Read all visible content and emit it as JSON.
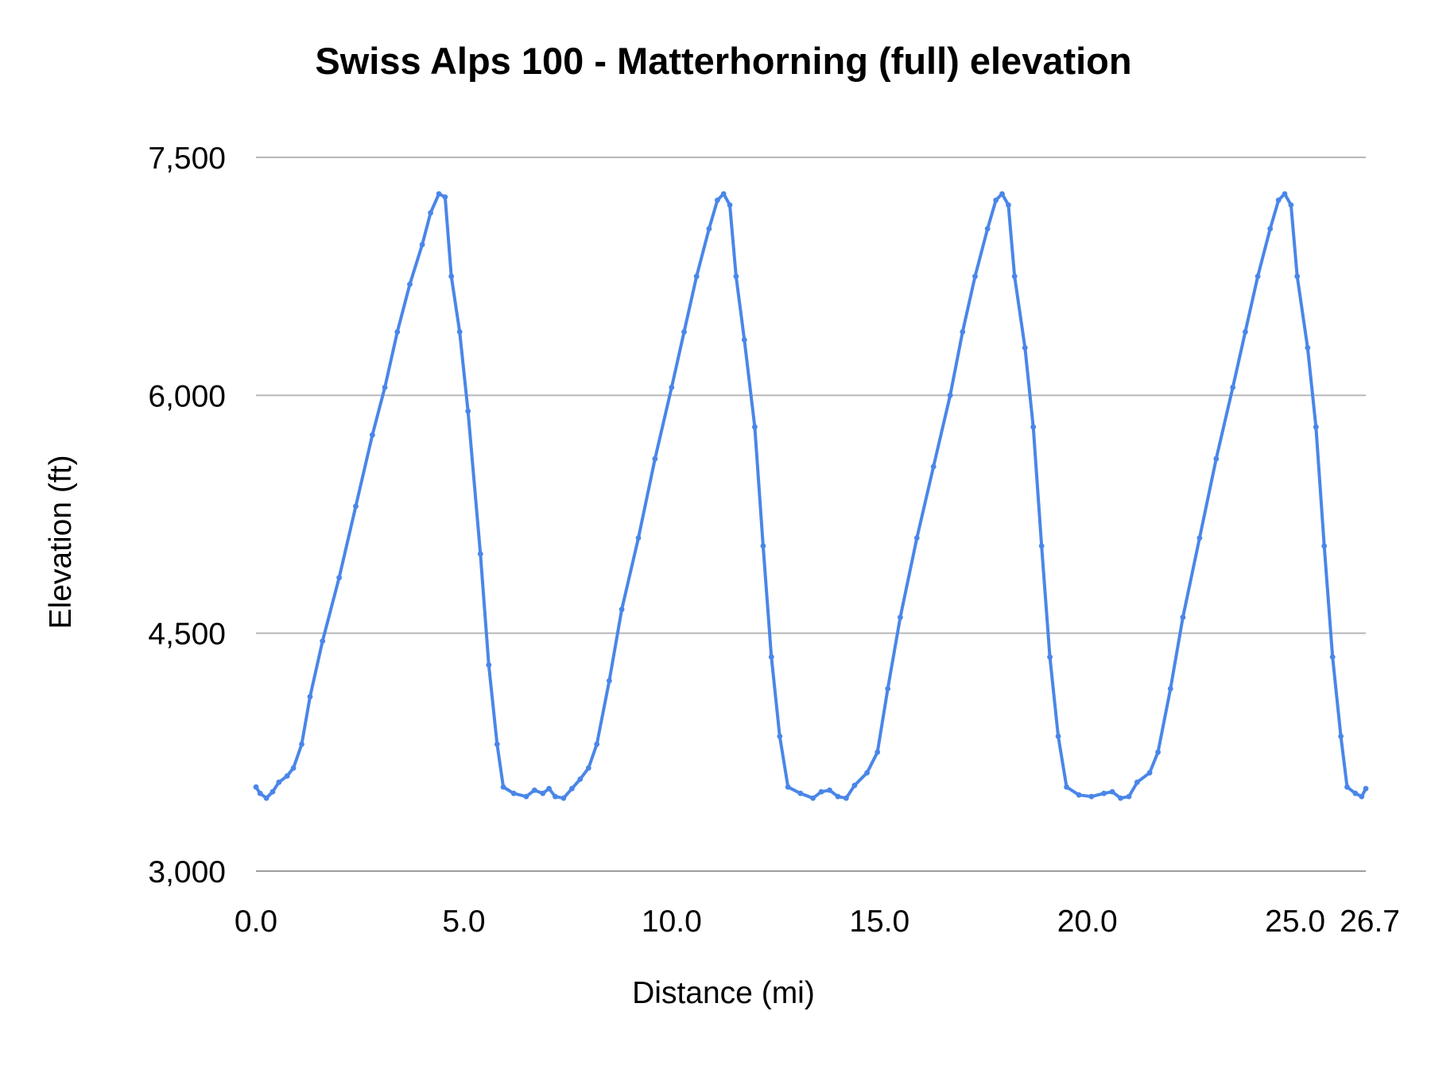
{
  "chart_data": {
    "type": "line",
    "title": "Swiss Alps 100 - Matterhorning (full) elevation",
    "xlabel": "Distance (mi)",
    "ylabel": "Elevation (ft)",
    "xlim": [
      0,
      26.7
    ],
    "ylim": [
      3000,
      7500
    ],
    "x_ticks": [
      0.0,
      5.0,
      10.0,
      15.0,
      20.0,
      25.0,
      26.7
    ],
    "x_tick_labels": [
      "0.0",
      "5.0",
      "10.0",
      "15.0",
      "20.0",
      "25.0",
      "26.7"
    ],
    "y_ticks": [
      3000,
      4500,
      6000,
      7500
    ],
    "y_tick_labels": [
      "3,000",
      "4,500",
      "6,000",
      "7,500"
    ],
    "grid": true,
    "legend": "none",
    "series": [
      {
        "color": "#4a86e8",
        "points": [
          [
            0.0,
            3530
          ],
          [
            0.1,
            3490
          ],
          [
            0.25,
            3460
          ],
          [
            0.4,
            3500
          ],
          [
            0.55,
            3560
          ],
          [
            0.75,
            3600
          ],
          [
            0.9,
            3650
          ],
          [
            1.1,
            3800
          ],
          [
            1.3,
            4100
          ],
          [
            1.6,
            4450
          ],
          [
            2.0,
            4850
          ],
          [
            2.4,
            5300
          ],
          [
            2.8,
            5750
          ],
          [
            3.1,
            6050
          ],
          [
            3.4,
            6400
          ],
          [
            3.7,
            6700
          ],
          [
            4.0,
            6950
          ],
          [
            4.2,
            7150
          ],
          [
            4.4,
            7270
          ],
          [
            4.55,
            7250
          ],
          [
            4.7,
            6750
          ],
          [
            4.9,
            6400
          ],
          [
            5.1,
            5900
          ],
          [
            5.4,
            5000
          ],
          [
            5.6,
            4300
          ],
          [
            5.8,
            3800
          ],
          [
            5.95,
            3530
          ],
          [
            6.2,
            3490
          ],
          [
            6.5,
            3470
          ],
          [
            6.7,
            3510
          ],
          [
            6.9,
            3490
          ],
          [
            7.05,
            3520
          ],
          [
            7.2,
            3470
          ],
          [
            7.4,
            3460
          ],
          [
            7.6,
            3520
          ],
          [
            7.8,
            3580
          ],
          [
            8.0,
            3650
          ],
          [
            8.2,
            3800
          ],
          [
            8.5,
            4200
          ],
          [
            8.8,
            4650
          ],
          [
            9.2,
            5100
          ],
          [
            9.6,
            5600
          ],
          [
            10.0,
            6050
          ],
          [
            10.3,
            6400
          ],
          [
            10.6,
            6750
          ],
          [
            10.9,
            7050
          ],
          [
            11.1,
            7230
          ],
          [
            11.25,
            7270
          ],
          [
            11.4,
            7200
          ],
          [
            11.55,
            6750
          ],
          [
            11.75,
            6350
          ],
          [
            12.0,
            5800
          ],
          [
            12.2,
            5050
          ],
          [
            12.4,
            4350
          ],
          [
            12.6,
            3850
          ],
          [
            12.8,
            3530
          ],
          [
            13.1,
            3490
          ],
          [
            13.4,
            3460
          ],
          [
            13.6,
            3500
          ],
          [
            13.8,
            3510
          ],
          [
            14.0,
            3470
          ],
          [
            14.2,
            3460
          ],
          [
            14.4,
            3540
          ],
          [
            14.7,
            3620
          ],
          [
            14.95,
            3750
          ],
          [
            15.2,
            4150
          ],
          [
            15.5,
            4600
          ],
          [
            15.9,
            5100
          ],
          [
            16.3,
            5550
          ],
          [
            16.7,
            6000
          ],
          [
            17.0,
            6400
          ],
          [
            17.3,
            6750
          ],
          [
            17.6,
            7050
          ],
          [
            17.8,
            7230
          ],
          [
            17.95,
            7270
          ],
          [
            18.1,
            7200
          ],
          [
            18.25,
            6750
          ],
          [
            18.5,
            6300
          ],
          [
            18.7,
            5800
          ],
          [
            18.9,
            5050
          ],
          [
            19.1,
            4350
          ],
          [
            19.3,
            3850
          ],
          [
            19.5,
            3530
          ],
          [
            19.8,
            3480
          ],
          [
            20.1,
            3470
          ],
          [
            20.4,
            3490
          ],
          [
            20.6,
            3500
          ],
          [
            20.8,
            3460
          ],
          [
            21.0,
            3470
          ],
          [
            21.2,
            3560
          ],
          [
            21.5,
            3620
          ],
          [
            21.7,
            3750
          ],
          [
            22.0,
            4150
          ],
          [
            22.3,
            4600
          ],
          [
            22.7,
            5100
          ],
          [
            23.1,
            5600
          ],
          [
            23.5,
            6050
          ],
          [
            23.8,
            6400
          ],
          [
            24.1,
            6750
          ],
          [
            24.4,
            7050
          ],
          [
            24.6,
            7230
          ],
          [
            24.75,
            7270
          ],
          [
            24.9,
            7200
          ],
          [
            25.05,
            6750
          ],
          [
            25.3,
            6300
          ],
          [
            25.5,
            5800
          ],
          [
            25.7,
            5050
          ],
          [
            25.9,
            4350
          ],
          [
            26.1,
            3850
          ],
          [
            26.25,
            3530
          ],
          [
            26.45,
            3490
          ],
          [
            26.6,
            3470
          ],
          [
            26.7,
            3520
          ]
        ]
      }
    ]
  }
}
